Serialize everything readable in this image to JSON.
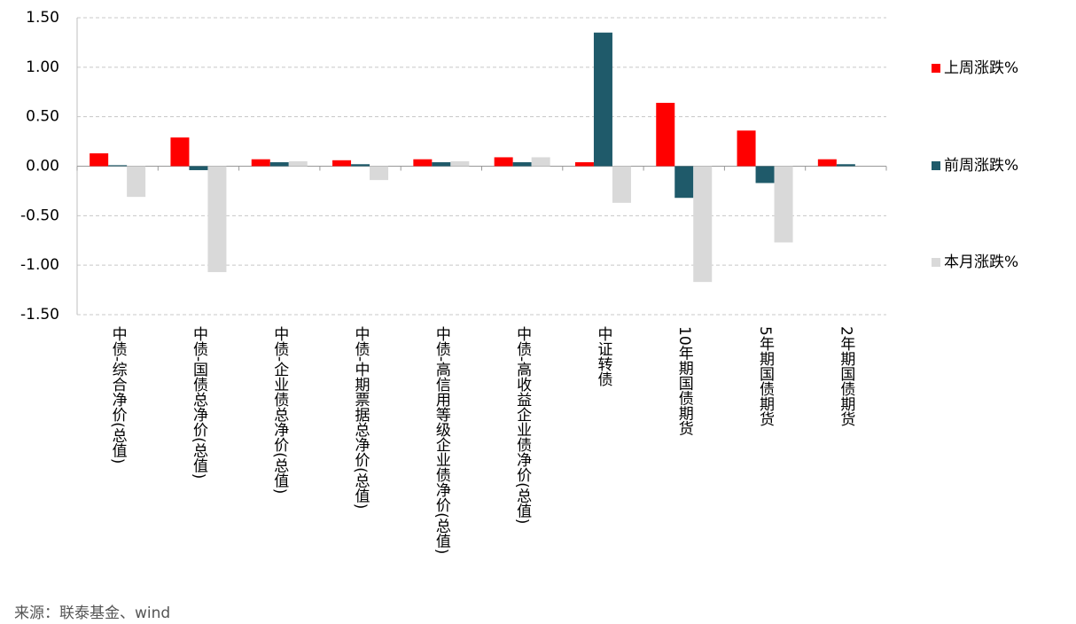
{
  "chart_data": {
    "type": "bar",
    "categories": [
      "中债-综合净价(总值)",
      "中债-国债总净价(总值)",
      "中债-企业债总净价(总值)",
      "中债-中期票据总净价(总值)",
      "中债-高信用等级企业债净价(总值)",
      "中债-高收益企业债净价(总值)",
      "中证转债",
      "10年期国债期货",
      "5年期国债期货",
      "2年期国债期货"
    ],
    "series": [
      {
        "name": "上周涨跌%",
        "color": "#ff0000",
        "values": [
          0.13,
          0.29,
          0.07,
          0.06,
          0.07,
          0.09,
          0.04,
          0.64,
          0.36,
          0.07
        ]
      },
      {
        "name": "前周涨跌%",
        "color": "#1f5a6a",
        "values": [
          0.01,
          -0.04,
          0.04,
          0.02,
          0.04,
          0.04,
          1.35,
          -0.32,
          -0.17,
          0.02
        ]
      },
      {
        "name": "本月涨跌%",
        "color": "#d9d9d9",
        "values": [
          -0.31,
          -1.07,
          0.05,
          -0.14,
          0.05,
          0.09,
          -0.37,
          -1.17,
          -0.77,
          0
        ]
      }
    ],
    "ylim": [
      -1.5,
      1.5
    ],
    "yticks": [
      {
        "value": -1.5,
        "label": "-1.50"
      },
      {
        "value": -1,
        "label": "-1.00"
      },
      {
        "value": -0.5,
        "label": "-0.50"
      },
      {
        "value": 0,
        "label": "0.00"
      },
      {
        "value": 0.5,
        "label": "0.50"
      },
      {
        "value": 1,
        "label": "1.00"
      },
      {
        "value": 1.5,
        "label": "1.50"
      }
    ],
    "grid": true,
    "legend": "right",
    "source": "来源：联泰基金、wind"
  }
}
